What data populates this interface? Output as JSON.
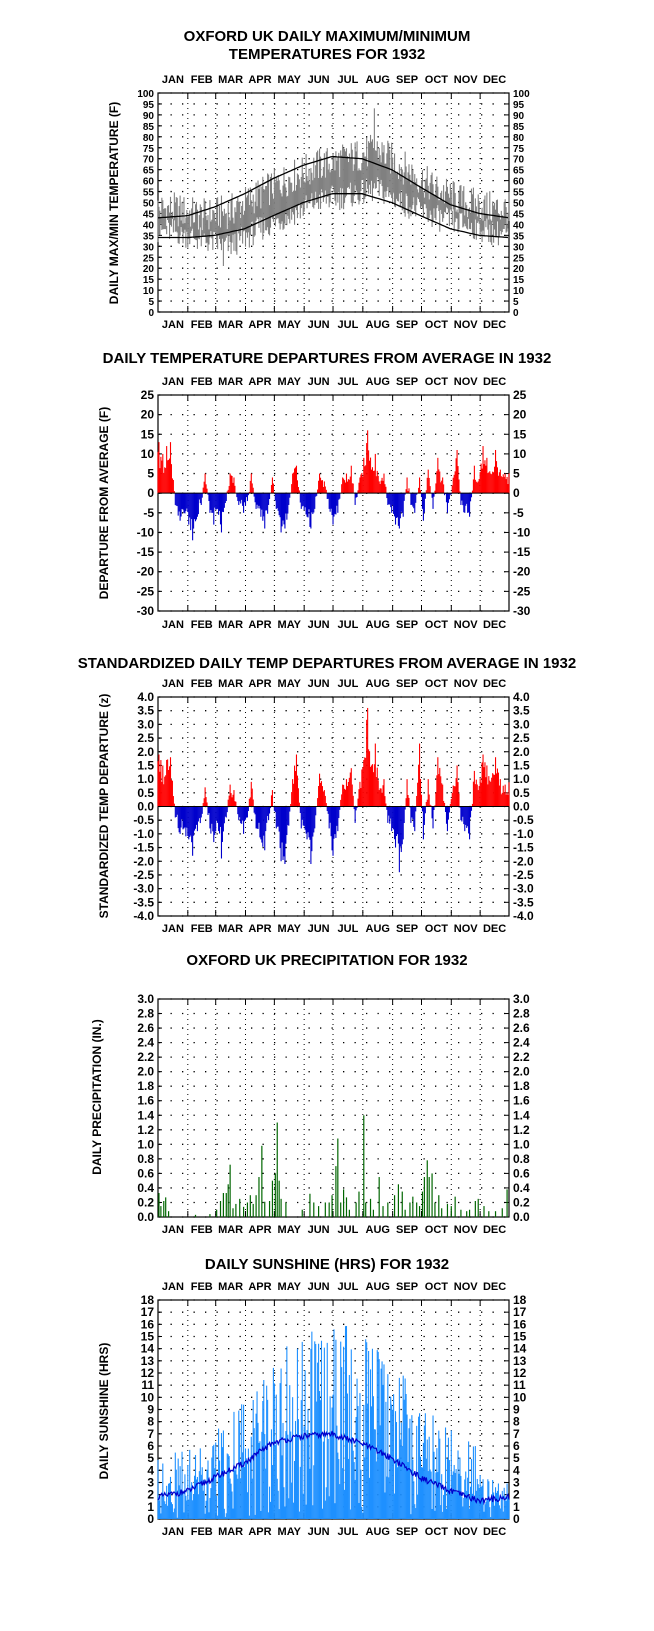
{
  "colors": {
    "maxmin_band": "#808080",
    "normal_lines": "#000000",
    "positive": "#ff0000",
    "negative": "#0000cc",
    "precip": "#006600",
    "sunshine": "#1e90ff",
    "sunshine_avg": "#0000cc"
  },
  "months": [
    "JAN",
    "FEB",
    "MAR",
    "APR",
    "MAY",
    "JUN",
    "JUL",
    "AUG",
    "SEP",
    "OCT",
    "NOV",
    "DEC"
  ],
  "chart_data": [
    {
      "type": "line",
      "title_line1": "OXFORD UK DAILY MAXIMUM/MINIMUM",
      "title_line2": "TEMPERATURES FOR 1932",
      "ylabel": "DAILY MAX/MIN TEMPERATURE (F)",
      "ylim": [
        0,
        100
      ],
      "yticks": [
        0,
        5,
        10,
        15,
        20,
        25,
        30,
        35,
        40,
        45,
        50,
        55,
        60,
        65,
        70,
        75,
        80,
        85,
        90,
        95,
        100
      ],
      "grid": true,
      "series": [
        {
          "key": "normal_max",
          "knots_doy": [
            1,
            32,
            60,
            91,
            121,
            152,
            182,
            213,
            244,
            274,
            305,
            335,
            366
          ],
          "knots_val": [
            43,
            44,
            48,
            54,
            61,
            67,
            71,
            70,
            65,
            57,
            49,
            45,
            43
          ]
        },
        {
          "key": "normal_min",
          "knots_doy": [
            1,
            32,
            60,
            91,
            121,
            152,
            182,
            213,
            244,
            274,
            305,
            335,
            366
          ],
          "knots_val": [
            34,
            34,
            35,
            38,
            44,
            50,
            54,
            54,
            50,
            44,
            38,
            35,
            34
          ]
        }
      ],
      "daily_max_monthly_approx": {
        "months": [
          "JAN",
          "FEB",
          "MAR",
          "APR",
          "MAY",
          "JUN",
          "JUL",
          "AUG",
          "SEP",
          "OCT",
          "NOV",
          "DEC"
        ],
        "values": [
          47,
          44,
          46,
          54,
          61,
          67,
          70,
          74,
          65,
          56,
          50,
          47
        ]
      },
      "daily_min_monthly_approx": {
        "months": [
          "JAN",
          "FEB",
          "MAR",
          "APR",
          "MAY",
          "JUN",
          "JUL",
          "AUG",
          "SEP",
          "OCT",
          "NOV",
          "DEC"
        ],
        "values": [
          37,
          33,
          30,
          38,
          44,
          51,
          53,
          56,
          49,
          43,
          40,
          36
        ]
      },
      "annotations": {
        "max_peak": {
          "month": "AUG",
          "value": 93
        },
        "min_low": {
          "month": "MAR",
          "value": 21
        }
      }
    },
    {
      "type": "bar",
      "title": "DAILY TEMPERATURE DEPARTURES FROM AVERAGE IN 1932",
      "ylabel": "DEPARTURE FROM AVERAGE (F)",
      "ylim": [
        -30,
        25
      ],
      "yticks": [
        25,
        20,
        15,
        10,
        5,
        0,
        -5,
        -10,
        -15,
        -20,
        -25,
        -30
      ],
      "grid": true,
      "x_unit": "day of year",
      "spikes": [
        [
          2,
          13
        ],
        [
          6,
          10
        ],
        [
          10,
          12
        ],
        [
          14,
          13
        ],
        [
          19,
          -3
        ],
        [
          24,
          -7
        ],
        [
          28,
          -5
        ],
        [
          33,
          -8
        ],
        [
          37,
          -12
        ],
        [
          42,
          -6
        ],
        [
          46,
          -3
        ],
        [
          50,
          5
        ],
        [
          55,
          -5
        ],
        [
          59,
          -8
        ],
        [
          63,
          -4
        ],
        [
          67,
          -10
        ],
        [
          72,
          -2
        ],
        [
          76,
          5
        ],
        [
          80,
          4
        ],
        [
          85,
          -3
        ],
        [
          90,
          -5
        ],
        [
          94,
          -2
        ],
        [
          98,
          5
        ],
        [
          103,
          -4
        ],
        [
          108,
          -6
        ],
        [
          112,
          -9
        ],
        [
          116,
          -3
        ],
        [
          120,
          4
        ],
        [
          124,
          -4
        ],
        [
          129,
          -10
        ],
        [
          133,
          -9
        ],
        [
          137,
          -3
        ],
        [
          141,
          5
        ],
        [
          145,
          7
        ],
        [
          150,
          -4
        ],
        [
          156,
          -6
        ],
        [
          160,
          -9
        ],
        [
          164,
          -4
        ],
        [
          169,
          5
        ],
        [
          174,
          3
        ],
        [
          179,
          -4
        ],
        [
          183,
          -8
        ],
        [
          188,
          -5
        ],
        [
          193,
          4
        ],
        [
          197,
          5
        ],
        [
          202,
          7
        ],
        [
          206,
          -3
        ],
        [
          211,
          4
        ],
        [
          215,
          9
        ],
        [
          219,
          16
        ],
        [
          223,
          6
        ],
        [
          227,
          10
        ],
        [
          231,
          3
        ],
        [
          236,
          5
        ],
        [
          240,
          -3
        ],
        [
          244,
          -5
        ],
        [
          248,
          -8
        ],
        [
          252,
          -9
        ],
        [
          256,
          -6
        ],
        [
          260,
          4
        ],
        [
          264,
          -3
        ],
        [
          268,
          -5
        ],
        [
          273,
          4
        ],
        [
          277,
          -7
        ],
        [
          282,
          6
        ],
        [
          287,
          -4
        ],
        [
          292,
          9
        ],
        [
          297,
          4
        ],
        [
          302,
          -5
        ],
        [
          307,
          2
        ],
        [
          312,
          11
        ],
        [
          316,
          -3
        ],
        [
          320,
          -5
        ],
        [
          325,
          -6
        ],
        [
          330,
          7
        ],
        [
          334,
          3
        ],
        [
          339,
          12
        ],
        [
          343,
          9
        ],
        [
          347,
          5
        ],
        [
          352,
          11
        ],
        [
          357,
          6
        ],
        [
          362,
          5
        ]
      ]
    },
    {
      "type": "bar",
      "title": "STANDARDIZED DAILY TEMP DEPARTURES FROM AVERAGE IN 1932",
      "ylabel": "STANDARDIZED TEMP DEPARTURE (z)",
      "ylim": [
        -4.0,
        4.0
      ],
      "yticks": [
        "4.0",
        "3.5",
        "3.0",
        "2.5",
        "2.0",
        "1.5",
        "1.0",
        "0.5",
        "0.0",
        "-0.5",
        "-1.0",
        "-1.5",
        "-2.0",
        "-2.5",
        "-3.0",
        "-3.5",
        "-4.0"
      ],
      "grid": true,
      "x_unit": "day of year",
      "spikes": [
        [
          2,
          1.9
        ],
        [
          6,
          1.5
        ],
        [
          10,
          1.7
        ],
        [
          14,
          1.8
        ],
        [
          19,
          -0.4
        ],
        [
          24,
          -1.0
        ],
        [
          28,
          -0.8
        ],
        [
          33,
          -1.2
        ],
        [
          37,
          -1.8
        ],
        [
          42,
          -0.9
        ],
        [
          46,
          -0.4
        ],
        [
          50,
          0.7
        ],
        [
          55,
          -0.8
        ],
        [
          59,
          -1.3
        ],
        [
          63,
          -0.6
        ],
        [
          67,
          -1.9
        ],
        [
          72,
          -0.4
        ],
        [
          76,
          0.8
        ],
        [
          80,
          0.6
        ],
        [
          85,
          -0.5
        ],
        [
          90,
          -1.0
        ],
        [
          94,
          -0.4
        ],
        [
          98,
          0.9
        ],
        [
          103,
          -0.8
        ],
        [
          108,
          -1.2
        ],
        [
          112,
          -1.6
        ],
        [
          116,
          -0.5
        ],
        [
          120,
          0.6
        ],
        [
          124,
          -0.8
        ],
        [
          129,
          -2.0
        ],
        [
          133,
          -2.1
        ],
        [
          137,
          -0.7
        ],
        [
          141,
          1.0
        ],
        [
          145,
          1.9
        ],
        [
          150,
          -0.8
        ],
        [
          156,
          -1.2
        ],
        [
          160,
          -2.1
        ],
        [
          164,
          -0.8
        ],
        [
          169,
          1.2
        ],
        [
          174,
          0.6
        ],
        [
          179,
          -0.8
        ],
        [
          183,
          -1.8
        ],
        [
          188,
          -0.9
        ],
        [
          193,
          0.8
        ],
        [
          197,
          1.0
        ],
        [
          202,
          1.4
        ],
        [
          206,
          -0.6
        ],
        [
          211,
          0.9
        ],
        [
          215,
          1.7
        ],
        [
          219,
          3.6
        ],
        [
          223,
          1.5
        ],
        [
          227,
          2.3
        ],
        [
          231,
          0.6
        ],
        [
          236,
          1.0
        ],
        [
          240,
          -0.6
        ],
        [
          244,
          -0.9
        ],
        [
          248,
          -1.5
        ],
        [
          252,
          -2.4
        ],
        [
          256,
          -1.2
        ],
        [
          260,
          1.0
        ],
        [
          264,
          -0.6
        ],
        [
          268,
          -0.9
        ],
        [
          273,
          2.3
        ],
        [
          277,
          -1.2
        ],
        [
          282,
          1.0
        ],
        [
          287,
          -0.8
        ],
        [
          292,
          1.8
        ],
        [
          297,
          0.8
        ],
        [
          302,
          -0.9
        ],
        [
          307,
          0.5
        ],
        [
          312,
          1.5
        ],
        [
          316,
          -0.5
        ],
        [
          320,
          -0.9
        ],
        [
          325,
          -1.2
        ],
        [
          330,
          1.3
        ],
        [
          334,
          0.6
        ],
        [
          339,
          1.9
        ],
        [
          343,
          1.5
        ],
        [
          347,
          0.9
        ],
        [
          352,
          1.8
        ],
        [
          357,
          1.0
        ],
        [
          362,
          0.8
        ]
      ]
    },
    {
      "type": "bar",
      "title": "OXFORD UK PRECIPITATION FOR 1932",
      "ylabel": "DAILY PRECIPITATION (IN.)",
      "ylim": [
        0,
        3.0
      ],
      "yticks": [
        "3.0",
        "2.8",
        "2.6",
        "2.4",
        "2.2",
        "2.0",
        "1.8",
        "1.6",
        "1.4",
        "1.2",
        "1.0",
        "0.8",
        "0.6",
        "0.4",
        "0.2",
        "0.0"
      ],
      "grid": true,
      "x_unit": "day of year",
      "spikes": [
        [
          2,
          0.33
        ],
        [
          4,
          0.15
        ],
        [
          7,
          0.22
        ],
        [
          9,
          0.27
        ],
        [
          12,
          0.08
        ],
        [
          40,
          0.03
        ],
        [
          55,
          0.04
        ],
        [
          62,
          0.1
        ],
        [
          66,
          0.22
        ],
        [
          69,
          0.33
        ],
        [
          72,
          0.33
        ],
        [
          74,
          0.45
        ],
        [
          76,
          0.72
        ],
        [
          79,
          0.12
        ],
        [
          82,
          0.18
        ],
        [
          86,
          0.25
        ],
        [
          90,
          0.14
        ],
        [
          94,
          0.2
        ],
        [
          97,
          0.3
        ],
        [
          100,
          0.18
        ],
        [
          103,
          0.3
        ],
        [
          106,
          0.55
        ],
        [
          109,
          0.98
        ],
        [
          112,
          0.21
        ],
        [
          117,
          0.22
        ],
        [
          120,
          0.5
        ],
        [
          123,
          0.6
        ],
        [
          125,
          1.3
        ],
        [
          127,
          0.5
        ],
        [
          129,
          0.25
        ],
        [
          134,
          0.2
        ],
        [
          151,
          0.1
        ],
        [
          159,
          0.32
        ],
        [
          163,
          0.2
        ],
        [
          168,
          0.15
        ],
        [
          175,
          0.2
        ],
        [
          179,
          0.2
        ],
        [
          182,
          0.3
        ],
        [
          186,
          0.7
        ],
        [
          188,
          1.08
        ],
        [
          191,
          0.2
        ],
        [
          194,
          0.38
        ],
        [
          197,
          0.27
        ],
        [
          200,
          0.1
        ],
        [
          207,
          0.2
        ],
        [
          210,
          0.35
        ],
        [
          215,
          1.4
        ],
        [
          217,
          0.2
        ],
        [
          222,
          0.25
        ],
        [
          225,
          0.1
        ],
        [
          231,
          0.55
        ],
        [
          235,
          0.15
        ],
        [
          240,
          0.2
        ],
        [
          247,
          0.3
        ],
        [
          251,
          0.45
        ],
        [
          255,
          0.35
        ],
        [
          258,
          0.1
        ],
        [
          263,
          0.2
        ],
        [
          266,
          0.28
        ],
        [
          270,
          0.2
        ],
        [
          273,
          0.15
        ],
        [
          276,
          0.35
        ],
        [
          278,
          0.55
        ],
        [
          281,
          0.78
        ],
        [
          283,
          0.55
        ],
        [
          286,
          0.6
        ],
        [
          289,
          0.2
        ],
        [
          293,
          0.3
        ],
        [
          296,
          0.12
        ],
        [
          302,
          0.18
        ],
        [
          306,
          0.15
        ],
        [
          310,
          0.28
        ],
        [
          316,
          0.1
        ],
        [
          322,
          0.08
        ],
        [
          325,
          0.1
        ],
        [
          331,
          0.22
        ],
        [
          334,
          0.25
        ],
        [
          340,
          0.15
        ],
        [
          345,
          0.08
        ],
        [
          352,
          0.08
        ],
        [
          359,
          0.12
        ],
        [
          364,
          0.38
        ]
      ]
    },
    {
      "type": "bar",
      "title": "DAILY SUNSHINE (HRS) FOR 1932",
      "ylabel": "DAILY SUNSHINE (HRS)",
      "ylim": [
        0,
        18
      ],
      "yticks": [
        18,
        17,
        16,
        15,
        14,
        13,
        12,
        11,
        10,
        9,
        8,
        7,
        6,
        5,
        4,
        3,
        2,
        1,
        0
      ],
      "grid": true,
      "x_unit": "day of year",
      "average_line": {
        "knots_doy": [
          1,
          32,
          60,
          91,
          121,
          152,
          182,
          213,
          244,
          274,
          305,
          335,
          366
        ],
        "knots_val": [
          1.8,
          2.3,
          3.4,
          4.6,
          6.3,
          6.8,
          7.0,
          6.2,
          5.0,
          3.4,
          2.3,
          1.5,
          1.8
        ]
      },
      "monthly_mean_approx": {
        "months": [
          "JAN",
          "FEB",
          "MAR",
          "APR",
          "MAY",
          "JUN",
          "JUL",
          "AUG",
          "SEP",
          "OCT",
          "NOV",
          "DEC"
        ],
        "values": [
          1.8,
          2.3,
          3.4,
          4.6,
          6.3,
          6.8,
          7.0,
          6.2,
          5.0,
          3.4,
          2.3,
          1.5
        ]
      },
      "annotations": {
        "max_peak": {
          "month": "JUN",
          "value": 15.4
        }
      }
    }
  ]
}
